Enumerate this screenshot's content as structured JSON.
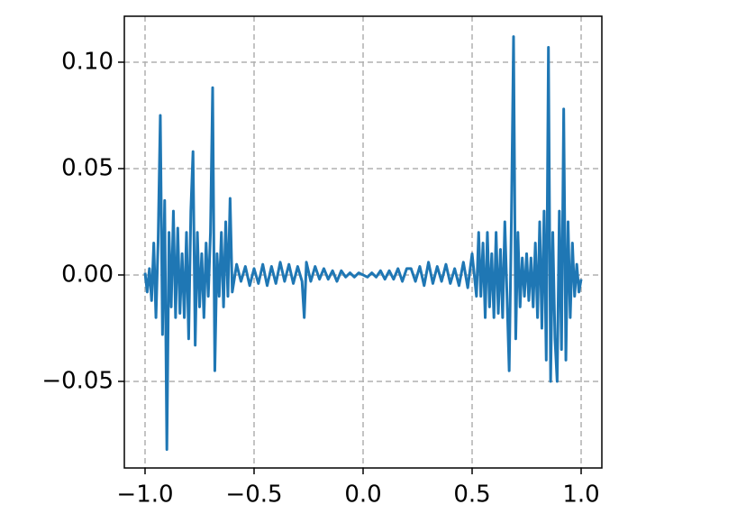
{
  "chart_data": {
    "type": "line",
    "x": [
      -1.0,
      -0.99,
      -0.98,
      -0.97,
      -0.96,
      -0.95,
      -0.94,
      -0.93,
      -0.92,
      -0.91,
      -0.9,
      -0.89,
      -0.88,
      -0.87,
      -0.86,
      -0.85,
      -0.84,
      -0.83,
      -0.82,
      -0.81,
      -0.8,
      -0.79,
      -0.78,
      -0.77,
      -0.76,
      -0.75,
      -0.74,
      -0.73,
      -0.72,
      -0.71,
      -0.7,
      -0.69,
      -0.68,
      -0.67,
      -0.66,
      -0.65,
      -0.64,
      -0.63,
      -0.62,
      -0.61,
      -0.6,
      -0.58,
      -0.56,
      -0.54,
      -0.52,
      -0.5,
      -0.48,
      -0.46,
      -0.44,
      -0.42,
      -0.4,
      -0.38,
      -0.36,
      -0.34,
      -0.32,
      -0.3,
      -0.28,
      -0.27,
      -0.26,
      -0.24,
      -0.22,
      -0.2,
      -0.18,
      -0.16,
      -0.14,
      -0.12,
      -0.1,
      -0.08,
      -0.06,
      -0.04,
      -0.02,
      0.0,
      0.02,
      0.04,
      0.06,
      0.08,
      0.1,
      0.12,
      0.14,
      0.16,
      0.18,
      0.2,
      0.22,
      0.24,
      0.26,
      0.28,
      0.3,
      0.32,
      0.34,
      0.36,
      0.38,
      0.4,
      0.42,
      0.44,
      0.46,
      0.48,
      0.5,
      0.52,
      0.53,
      0.54,
      0.55,
      0.56,
      0.57,
      0.58,
      0.59,
      0.6,
      0.61,
      0.62,
      0.63,
      0.64,
      0.65,
      0.66,
      0.67,
      0.68,
      0.69,
      0.7,
      0.71,
      0.72,
      0.73,
      0.74,
      0.75,
      0.76,
      0.77,
      0.78,
      0.79,
      0.8,
      0.81,
      0.82,
      0.83,
      0.84,
      0.85,
      0.86,
      0.87,
      0.88,
      0.89,
      0.9,
      0.91,
      0.92,
      0.93,
      0.94,
      0.95,
      0.96,
      0.97,
      0.98,
      0.99,
      1.0
    ],
    "series": [
      {
        "color": "#1f77b4",
        "values": [
          0.001,
          -0.008,
          0.003,
          -0.012,
          0.015,
          -0.02,
          0.016,
          0.075,
          -0.028,
          0.035,
          -0.082,
          0.02,
          -0.015,
          0.03,
          -0.02,
          0.022,
          -0.018,
          0.01,
          -0.02,
          0.02,
          -0.03,
          0.03,
          0.058,
          -0.033,
          0.02,
          -0.015,
          0.01,
          -0.02,
          0.015,
          -0.01,
          0.02,
          0.088,
          -0.045,
          0.01,
          -0.01,
          0.02,
          -0.015,
          0.025,
          -0.01,
          0.036,
          -0.008,
          0.005,
          -0.003,
          0.004,
          -0.005,
          0.003,
          -0.004,
          0.005,
          -0.005,
          0.004,
          -0.004,
          0.006,
          -0.003,
          0.005,
          -0.004,
          0.004,
          -0.003,
          -0.02,
          0.006,
          -0.003,
          0.004,
          -0.002,
          0.003,
          -0.002,
          0.002,
          -0.003,
          0.002,
          -0.001,
          0.001,
          -0.001,
          0.001,
          0,
          -0.001,
          0.001,
          -0.001,
          0.002,
          -0.002,
          0.002,
          -0.002,
          0.003,
          -0.003,
          0.003,
          0.003,
          -0.003,
          0.004,
          -0.005,
          0.006,
          -0.004,
          0.004,
          -0.003,
          0.005,
          -0.004,
          0.003,
          -0.005,
          0.006,
          -0.006,
          0.01,
          -0.01,
          0.02,
          -0.01,
          0.015,
          -0.02,
          0.02,
          -0.015,
          0.01,
          -0.02,
          0.02,
          -0.018,
          0.012,
          -0.02,
          0.025,
          -0.01,
          -0.045,
          0.025,
          0.112,
          -0.03,
          0.02,
          -0.015,
          0.008,
          -0.01,
          0.01,
          -0.012,
          0.008,
          -0.015,
          0.015,
          -0.02,
          0.025,
          -0.025,
          0.03,
          -0.04,
          0.107,
          -0.05,
          0.02,
          -0.03,
          -0.05,
          0.03,
          -0.035,
          0.078,
          -0.04,
          0.025,
          -0.02,
          0.015,
          -0.01,
          0.005,
          -0.008,
          -0.002
        ]
      }
    ],
    "xlim": [
      -1.095,
      1.095
    ],
    "ylim": [
      -0.0907,
      0.1216
    ],
    "xticks": [
      {
        "value": -1.0,
        "label": "−1.0"
      },
      {
        "value": -0.5,
        "label": "−0.5"
      },
      {
        "value": 0.0,
        "label": "0.0"
      },
      {
        "value": 0.5,
        "label": "0.5"
      },
      {
        "value": 1.0,
        "label": "1.0"
      }
    ],
    "yticks": [
      {
        "value": -0.05,
        "label": "−0.05"
      },
      {
        "value": 0.0,
        "label": "0.00"
      },
      0.05,
      {
        "value": 0.1,
        "label": "0.10"
      }
    ],
    "grid": true
  }
}
